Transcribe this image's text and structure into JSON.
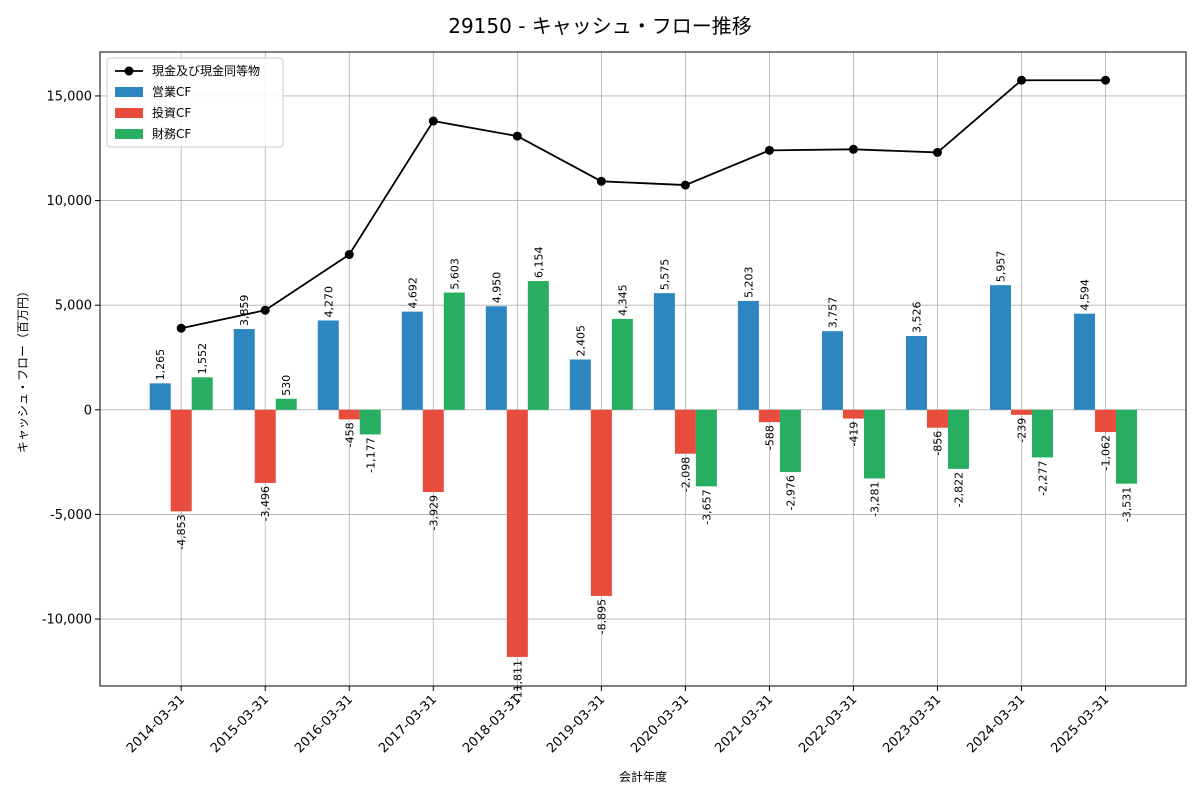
{
  "chart_data": {
    "type": "bar",
    "title": "29150 - キャッシュ・フロー推移",
    "xlabel": "会計年度",
    "ylabel": "キャッシュ・フロー（百万円）",
    "ylim": [
      -13200,
      17100
    ],
    "yticks": [
      -10000,
      -5000,
      0,
      5000,
      10000,
      15000
    ],
    "ytick_labels": [
      "-10,000",
      "-5,000",
      "0",
      "5,000",
      "10,000",
      "15,000"
    ],
    "grid": true,
    "legend_position": "top-left",
    "categories": [
      "2014-03-31",
      "2015-03-31",
      "2016-03-31",
      "2017-03-31",
      "2018-03-31",
      "2019-03-31",
      "2020-03-31",
      "2021-03-31",
      "2022-03-31",
      "2023-03-31",
      "2024-03-31",
      "2025-03-31"
    ],
    "series": [
      {
        "name": "営業CF",
        "kind": "bar",
        "color": "#2e86c1",
        "values": [
          1265,
          3859,
          4270,
          4692,
          4950,
          2405,
          5575,
          5203,
          3757,
          3526,
          5957,
          4594
        ],
        "labels": [
          "1,265",
          "3,859",
          "4,270",
          "4,692",
          "4,950",
          "2,405",
          "5,575",
          "5,203",
          "3,757",
          "3,526",
          "5,957",
          "4,594"
        ]
      },
      {
        "name": "投資CF",
        "kind": "bar",
        "color": "#e74c3c",
        "values": [
          -4853,
          -3496,
          -458,
          -3929,
          -11811,
          -8895,
          -2098,
          -588,
          -419,
          -856,
          -239,
          -1062
        ],
        "labels": [
          "-4,853",
          "-3,496",
          "-458",
          "-3,929",
          "-11,811",
          "-8,895",
          "-2,098",
          "-588",
          "-419",
          "-856",
          "-239",
          "-1,062"
        ]
      },
      {
        "name": "財務CF",
        "kind": "bar",
        "color": "#27ae60",
        "values": [
          1552,
          530,
          -1177,
          5603,
          6154,
          4345,
          -3657,
          -2976,
          -3281,
          -2822,
          -2277,
          -3531
        ],
        "labels": [
          "1,552",
          "530",
          "-1,177",
          "5,603",
          "6,154",
          "4,345",
          "-3,657",
          "-2,976",
          "-3,281",
          "-2,822",
          "-2,277",
          "-3,531"
        ]
      },
      {
        "name": "現金及び現金同等物",
        "kind": "line",
        "color": "#000000",
        "values": [
          3900,
          4760,
          7420,
          13800,
          13080,
          10920,
          10740,
          12400,
          12450,
          12300,
          15750,
          15750
        ]
      }
    ]
  }
}
